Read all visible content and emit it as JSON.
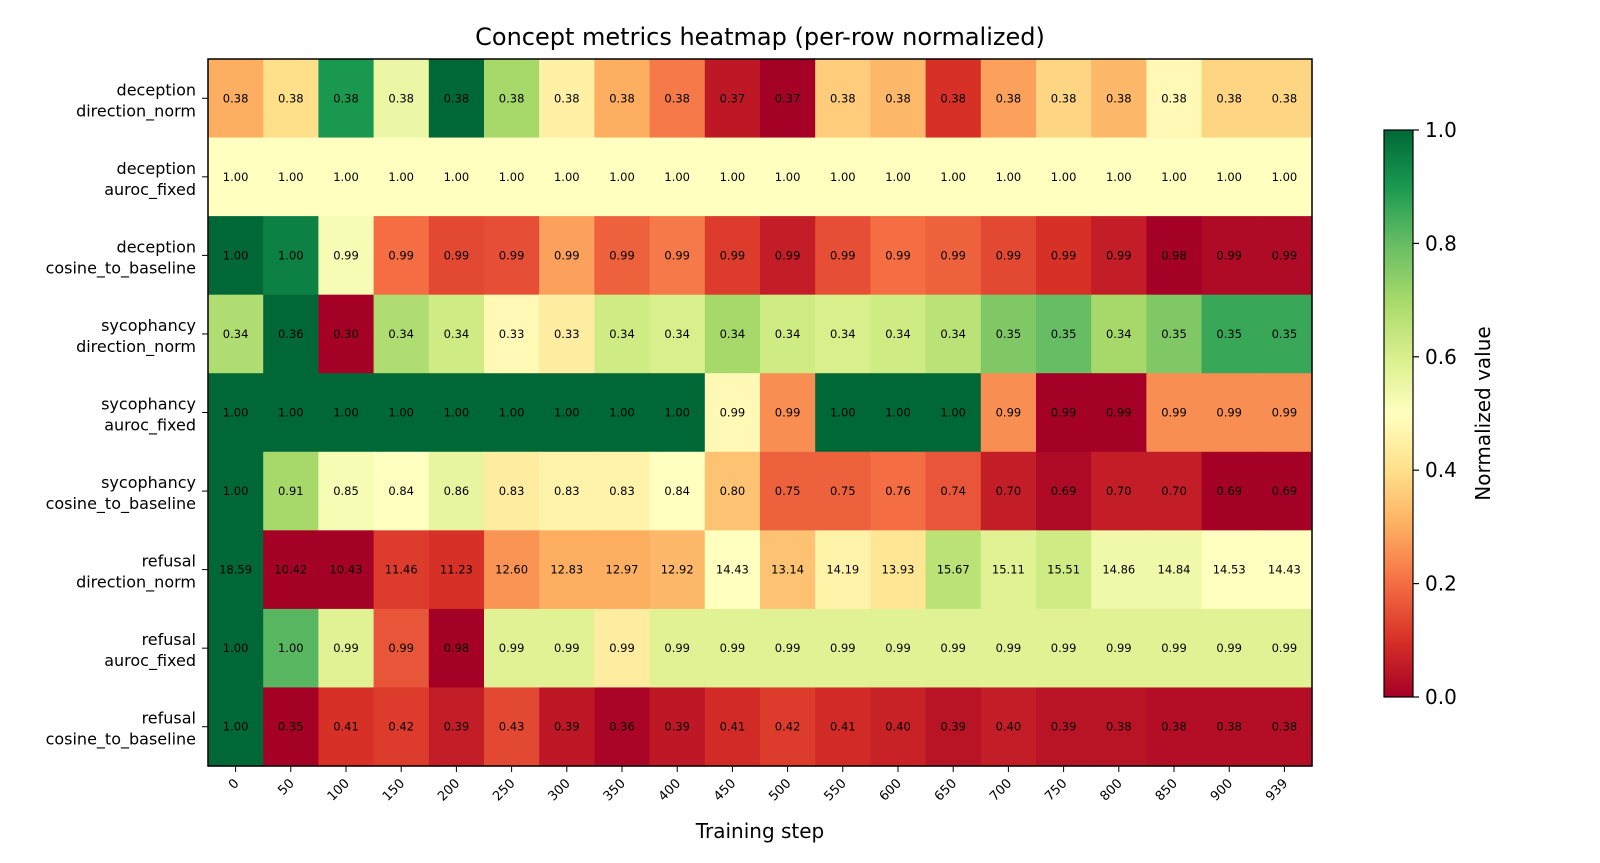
{
  "chart_data": {
    "type": "heatmap",
    "title": "Concept metrics heatmap (per-row normalized)",
    "xlabel": "Training step",
    "ylabel": "",
    "x": [
      "0",
      "50",
      "100",
      "150",
      "200",
      "250",
      "300",
      "350",
      "400",
      "450",
      "500",
      "550",
      "600",
      "650",
      "700",
      "750",
      "800",
      "850",
      "900",
      "939"
    ],
    "rows": [
      {
        "label": [
          "deception",
          "direction_norm"
        ],
        "norm": [
          0.3,
          0.4,
          0.9,
          0.55,
          1.0,
          0.7,
          0.45,
          0.3,
          0.22,
          0.05,
          0.0,
          0.36,
          0.32,
          0.1,
          0.28,
          0.38,
          0.32,
          0.48,
          0.38,
          0.38
        ],
        "labels": [
          "0.38",
          "0.38",
          "0.38",
          "0.38",
          "0.38",
          "0.38",
          "0.38",
          "0.38",
          "0.38",
          "0.37",
          "0.37",
          "0.38",
          "0.38",
          "0.38",
          "0.38",
          "0.38",
          "0.38",
          "0.38",
          "0.38",
          "0.38"
        ]
      },
      {
        "label": [
          "deception",
          "auroc_fixed"
        ],
        "norm": [
          0.5,
          0.5,
          0.5,
          0.5,
          0.5,
          0.5,
          0.5,
          0.5,
          0.5,
          0.5,
          0.5,
          0.5,
          0.5,
          0.5,
          0.5,
          0.5,
          0.5,
          0.5,
          0.5,
          0.5
        ],
        "labels": [
          "1.00",
          "1.00",
          "1.00",
          "1.00",
          "1.00",
          "1.00",
          "1.00",
          "1.00",
          "1.00",
          "1.00",
          "1.00",
          "1.00",
          "1.00",
          "1.00",
          "1.00",
          "1.00",
          "1.00",
          "1.00",
          "1.00",
          "1.00"
        ]
      },
      {
        "label": [
          "deception",
          "cosine_to_baseline"
        ],
        "norm": [
          1.0,
          0.95,
          0.52,
          0.2,
          0.14,
          0.15,
          0.28,
          0.18,
          0.22,
          0.12,
          0.06,
          0.15,
          0.2,
          0.18,
          0.14,
          0.1,
          0.06,
          0.0,
          0.02,
          0.02
        ],
        "labels": [
          "1.00",
          "1.00",
          "0.99",
          "0.99",
          "0.99",
          "0.99",
          "0.99",
          "0.99",
          "0.99",
          "0.99",
          "0.99",
          "0.99",
          "0.99",
          "0.99",
          "0.99",
          "0.99",
          "0.99",
          "0.98",
          "0.99",
          "0.99"
        ]
      },
      {
        "label": [
          "sycophancy",
          "direction_norm"
        ],
        "norm": [
          0.68,
          1.0,
          0.0,
          0.68,
          0.62,
          0.48,
          0.44,
          0.62,
          0.6,
          0.7,
          0.62,
          0.6,
          0.62,
          0.66,
          0.76,
          0.8,
          0.7,
          0.76,
          0.86,
          0.86
        ],
        "labels": [
          "0.34",
          "0.36",
          "0.30",
          "0.34",
          "0.34",
          "0.33",
          "0.33",
          "0.34",
          "0.34",
          "0.34",
          "0.34",
          "0.34",
          "0.34",
          "0.34",
          "0.35",
          "0.35",
          "0.34",
          "0.35",
          "0.35",
          "0.35"
        ]
      },
      {
        "label": [
          "sycophancy",
          "auroc_fixed"
        ],
        "norm": [
          1.0,
          1.0,
          1.0,
          1.0,
          1.0,
          1.0,
          1.0,
          1.0,
          1.0,
          0.48,
          0.25,
          1.0,
          1.0,
          1.0,
          0.25,
          0.0,
          0.0,
          0.25,
          0.25,
          0.25
        ],
        "labels": [
          "1.00",
          "1.00",
          "1.00",
          "1.00",
          "1.00",
          "1.00",
          "1.00",
          "1.00",
          "1.00",
          "0.99",
          "0.99",
          "1.00",
          "1.00",
          "1.00",
          "0.99",
          "0.99",
          "0.99",
          "0.99",
          "0.99",
          "0.99"
        ]
      },
      {
        "label": [
          "sycophancy",
          "cosine_to_baseline"
        ],
        "norm": [
          1.0,
          0.7,
          0.52,
          0.5,
          0.56,
          0.44,
          0.46,
          0.46,
          0.5,
          0.34,
          0.18,
          0.18,
          0.2,
          0.16,
          0.06,
          0.02,
          0.06,
          0.06,
          0.0,
          0.0
        ],
        "labels": [
          "1.00",
          "0.91",
          "0.85",
          "0.84",
          "0.86",
          "0.83",
          "0.83",
          "0.83",
          "0.84",
          "0.80",
          "0.75",
          "0.75",
          "0.76",
          "0.74",
          "0.70",
          "0.69",
          "0.70",
          "0.70",
          "0.69",
          "0.69"
        ]
      },
      {
        "label": [
          "refusal",
          "direction_norm"
        ],
        "norm": [
          1.0,
          0.0,
          0.0,
          0.12,
          0.1,
          0.26,
          0.3,
          0.3,
          0.32,
          0.5,
          0.34,
          0.46,
          0.42,
          0.66,
          0.58,
          0.62,
          0.54,
          0.54,
          0.5,
          0.5
        ],
        "labels": [
          "18.59",
          "10.42",
          "10.43",
          "11.46",
          "11.23",
          "12.60",
          "12.83",
          "12.97",
          "12.92",
          "14.43",
          "13.14",
          "14.19",
          "13.93",
          "15.67",
          "15.11",
          "15.51",
          "14.86",
          "14.84",
          "14.53",
          "14.43"
        ]
      },
      {
        "label": [
          "refusal",
          "auroc_fixed"
        ],
        "norm": [
          1.0,
          0.82,
          0.58,
          0.16,
          0.0,
          0.58,
          0.58,
          0.44,
          0.58,
          0.58,
          0.58,
          0.58,
          0.58,
          0.58,
          0.58,
          0.58,
          0.58,
          0.58,
          0.58,
          0.58
        ],
        "labels": [
          "1.00",
          "1.00",
          "0.99",
          "0.99",
          "0.98",
          "0.99",
          "0.99",
          "0.99",
          "0.99",
          "0.99",
          "0.99",
          "0.99",
          "0.99",
          "0.99",
          "0.99",
          "0.99",
          "0.99",
          "0.99",
          "0.99",
          "0.99"
        ]
      },
      {
        "label": [
          "refusal",
          "cosine_to_baseline"
        ],
        "norm": [
          1.0,
          0.0,
          0.1,
          0.12,
          0.06,
          0.14,
          0.05,
          0.01,
          0.05,
          0.09,
          0.12,
          0.09,
          0.07,
          0.04,
          0.06,
          0.04,
          0.04,
          0.03,
          0.03,
          0.03
        ],
        "labels": [
          "1.00",
          "0.35",
          "0.41",
          "0.42",
          "0.39",
          "0.43",
          "0.39",
          "0.36",
          "0.39",
          "0.41",
          "0.42",
          "0.41",
          "0.40",
          "0.39",
          "0.40",
          "0.39",
          "0.38",
          "0.38",
          "0.38",
          "0.38"
        ]
      }
    ],
    "colorbar": {
      "label": "Normalized value",
      "range": [
        0,
        1
      ],
      "ticks": [
        "0.0",
        "0.2",
        "0.4",
        "0.6",
        "0.8",
        "1.0"
      ],
      "colormap": "RdYlGn",
      "stops": [
        "#a50026",
        "#d73027",
        "#f46d43",
        "#fdae61",
        "#fee08b",
        "#ffffbf",
        "#d9ef8b",
        "#a6d96a",
        "#66bd63",
        "#1a9850",
        "#006837"
      ]
    },
    "grid": false,
    "legend": "colorbar-right"
  }
}
